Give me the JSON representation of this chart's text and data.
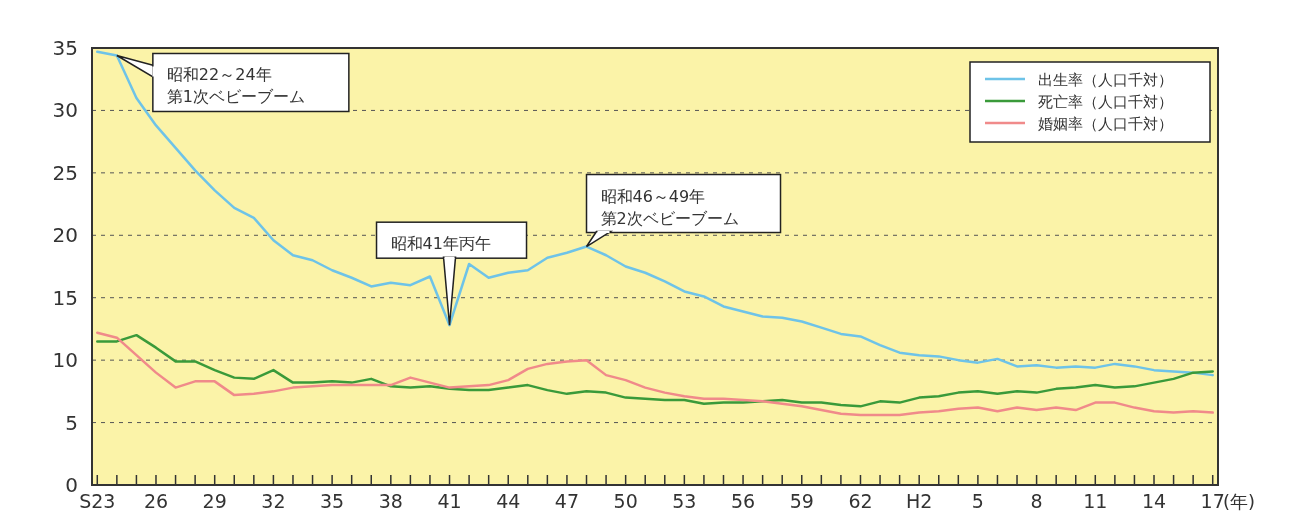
{
  "chart_data": {
    "type": "line",
    "categories": [
      "S23",
      null,
      null,
      "26",
      null,
      null,
      "29",
      null,
      null,
      "32",
      null,
      null,
      "35",
      null,
      null,
      "38",
      null,
      null,
      "41",
      null,
      null,
      "44",
      null,
      null,
      "47",
      null,
      null,
      "50",
      null,
      null,
      "53",
      null,
      null,
      "56",
      null,
      null,
      "59",
      null,
      null,
      "62",
      null,
      null,
      "H2",
      null,
      null,
      "5",
      null,
      null,
      "8",
      null,
      null,
      "11",
      null,
      null,
      "14",
      null,
      null,
      "17"
    ],
    "ylim": [
      0,
      35
    ],
    "yticks": [
      0,
      5,
      10,
      15,
      20,
      25,
      30,
      35
    ],
    "xlabel": "(年)",
    "grid": "y",
    "legend": "top right",
    "series": [
      {
        "name": "出生率（人口千対）",
        "color": "#6ec3e8",
        "values": [
          34.7,
          34.4,
          31.0,
          28.8,
          27.0,
          25.2,
          23.6,
          22.2,
          21.4,
          19.6,
          18.4,
          18.0,
          17.2,
          16.6,
          15.9,
          16.2,
          16.0,
          16.7,
          12.8,
          17.7,
          16.6,
          17.0,
          17.2,
          18.2,
          18.6,
          19.1,
          18.4,
          17.5,
          17.0,
          16.3,
          15.5,
          15.1,
          14.3,
          13.9,
          13.5,
          13.4,
          13.1,
          12.6,
          12.1,
          11.9,
          11.2,
          10.6,
          10.4,
          10.3,
          10.0,
          9.8,
          10.1,
          9.5,
          9.6,
          9.4,
          9.5,
          9.4,
          9.7,
          9.5,
          9.2,
          9.1,
          9.0,
          8.8
        ]
      },
      {
        "name": "死亡率（人口千対）",
        "color": "#3a9a3a",
        "values": [
          11.5,
          11.5,
          12.0,
          11.0,
          9.9,
          9.9,
          9.2,
          8.6,
          8.5,
          9.2,
          8.2,
          8.2,
          8.3,
          8.2,
          8.5,
          7.9,
          7.8,
          7.9,
          7.7,
          7.6,
          7.6,
          7.8,
          8.0,
          7.6,
          7.3,
          7.5,
          7.4,
          7.0,
          6.9,
          6.8,
          6.8,
          6.5,
          6.6,
          6.6,
          6.7,
          6.8,
          6.6,
          6.6,
          6.4,
          6.3,
          6.7,
          6.6,
          7.0,
          7.1,
          7.4,
          7.5,
          7.3,
          7.5,
          7.4,
          7.7,
          7.8,
          8.0,
          7.8,
          7.9,
          8.2,
          8.5,
          9.0,
          9.1
        ]
      },
      {
        "name": "婚姻率（人口千対）",
        "color": "#f08a8a",
        "values": [
          12.2,
          11.8,
          10.4,
          9.0,
          7.8,
          8.3,
          8.3,
          7.2,
          7.3,
          7.5,
          7.8,
          7.9,
          8.0,
          8.0,
          8.0,
          8.0,
          8.6,
          8.2,
          7.8,
          7.9,
          8.0,
          8.4,
          9.3,
          9.7,
          9.9,
          10.0,
          8.8,
          8.4,
          7.8,
          7.4,
          7.1,
          6.9,
          6.9,
          6.8,
          6.7,
          6.5,
          6.3,
          6.0,
          5.7,
          5.6,
          5.6,
          5.6,
          5.8,
          5.9,
          6.1,
          6.2,
          5.9,
          6.2,
          6.0,
          6.2,
          6.0,
          6.6,
          6.6,
          6.2,
          5.9,
          5.8,
          5.9,
          5.8
        ]
      }
    ],
    "annotations": [
      "昭和22～24年",
      "第1次ベビーブーム",
      {
        "text": "昭和41年丙午",
        "x": "41",
        "y": 12.8
      },
      "昭和46～49年",
      "第2次ベビーブーム"
    ]
  }
}
